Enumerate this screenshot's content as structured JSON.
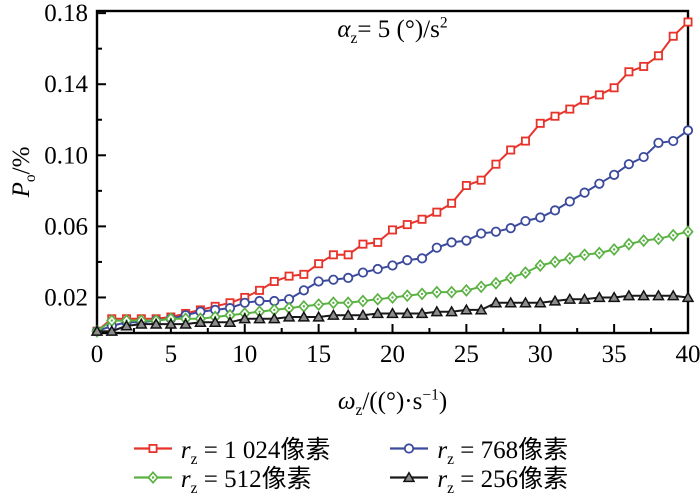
{
  "figure": {
    "annotation": {
      "var": "α",
      "sub": "z",
      "text": "= 5 (°)/s",
      "sup": "2"
    },
    "x_axis_label": {
      "var": "ω",
      "sub": "z",
      "text": "/((°)·s",
      "sup": "−1",
      "end": ")"
    },
    "y_axis_label": {
      "var": "P",
      "sub": "o",
      "text": "/%"
    }
  },
  "legend": {
    "items": [
      {
        "var": "r",
        "sub": "z",
        "text": " = 1 024像素"
      },
      {
        "var": "r",
        "sub": "z",
        "text": " = 768像素"
      },
      {
        "var": "r",
        "sub": "z",
        "text": " = 512像素"
      },
      {
        "var": "r",
        "sub": "z",
        "text": " = 256像素"
      }
    ]
  },
  "chart_data": {
    "type": "line",
    "title": "",
    "annotation": "αz = 5 (°)/s²",
    "xlabel": "ωz/((°)·s⁻¹)",
    "ylabel": "Po/%",
    "xlim": [
      0,
      40
    ],
    "ylim": [
      0,
      0.1812
    ],
    "grid": false,
    "legend_position": "bottom",
    "x_major_ticks": [
      0,
      5,
      10,
      15,
      20,
      25,
      30,
      35,
      40
    ],
    "x_tick_labels": [
      "0",
      "5",
      "10",
      "15",
      "20",
      "25",
      "30",
      "35",
      "40"
    ],
    "x_minor_ticks": [
      2.5,
      7.5,
      12.5,
      17.5,
      22.5,
      27.5,
      32.5,
      37.5
    ],
    "y_major_ticks": [
      0.02,
      0.06,
      0.1,
      0.14,
      0.18
    ],
    "y_tick_labels": [
      "0.02",
      "0.06",
      "0.10",
      "0.14",
      "0.18"
    ],
    "y_minor_ticks": [
      0.04,
      0.08,
      0.12,
      0.16
    ],
    "x": [
      0,
      1,
      2,
      3,
      4,
      5,
      6,
      7,
      8,
      9,
      10,
      11,
      12,
      13,
      14,
      15,
      16,
      17,
      18,
      19,
      20,
      21,
      22,
      23,
      24,
      25,
      26,
      27,
      28,
      29,
      30,
      31,
      32,
      33,
      34,
      35,
      36,
      37,
      38,
      39,
      40
    ],
    "series": [
      {
        "id": "rz-1024",
        "name": "rz = 1 024像素",
        "color": "#e8332b",
        "marker": "open-square",
        "values": [
          0.001,
          0.008,
          0.008,
          0.008,
          0.008,
          0.009,
          0.011,
          0.013,
          0.015,
          0.017,
          0.02,
          0.024,
          0.029,
          0.032,
          0.033,
          0.039,
          0.044,
          0.044,
          0.05,
          0.051,
          0.058,
          0.061,
          0.064,
          0.068,
          0.073,
          0.083,
          0.086,
          0.095,
          0.103,
          0.108,
          0.118,
          0.122,
          0.126,
          0.131,
          0.134,
          0.138,
          0.147,
          0.15,
          0.156,
          0.167,
          0.175
        ]
      },
      {
        "id": "rz-768",
        "name": "rz = 768像素",
        "color": "#3b4a9c",
        "marker": "open-circle",
        "values": [
          0.001,
          0.004,
          0.006,
          0.006,
          0.007,
          0.008,
          0.01,
          0.012,
          0.013,
          0.014,
          0.017,
          0.018,
          0.018,
          0.019,
          0.024,
          0.029,
          0.03,
          0.031,
          0.034,
          0.036,
          0.038,
          0.041,
          0.042,
          0.048,
          0.051,
          0.052,
          0.056,
          0.057,
          0.059,
          0.063,
          0.065,
          0.069,
          0.074,
          0.079,
          0.084,
          0.089,
          0.095,
          0.099,
          0.107,
          0.108,
          0.114
        ]
      },
      {
        "id": "rz-512",
        "name": "rz = 512像素",
        "color": "#5bb244",
        "marker": "open-diamond-dot",
        "values": [
          0.001,
          0.007,
          0.007,
          0.007,
          0.007,
          0.008,
          0.008,
          0.008,
          0.009,
          0.01,
          0.011,
          0.012,
          0.013,
          0.014,
          0.015,
          0.016,
          0.017,
          0.017,
          0.018,
          0.019,
          0.02,
          0.021,
          0.022,
          0.023,
          0.023,
          0.024,
          0.026,
          0.028,
          0.031,
          0.034,
          0.038,
          0.04,
          0.042,
          0.044,
          0.045,
          0.047,
          0.05,
          0.052,
          0.053,
          0.055,
          0.057
        ]
      },
      {
        "id": "rz-256",
        "name": "rz = 256像素",
        "color": "#1a1a1a",
        "marker": "filled-triangle",
        "marker_fill": "#8c8c8c",
        "values": [
          0.001,
          0.001,
          0.004,
          0.005,
          0.005,
          0.005,
          0.005,
          0.006,
          0.006,
          0.006,
          0.008,
          0.008,
          0.008,
          0.009,
          0.009,
          0.009,
          0.01,
          0.01,
          0.01,
          0.011,
          0.011,
          0.011,
          0.011,
          0.012,
          0.012,
          0.013,
          0.013,
          0.017,
          0.017,
          0.017,
          0.017,
          0.018,
          0.019,
          0.019,
          0.02,
          0.02,
          0.021,
          0.021,
          0.021,
          0.021,
          0.02
        ]
      }
    ]
  }
}
